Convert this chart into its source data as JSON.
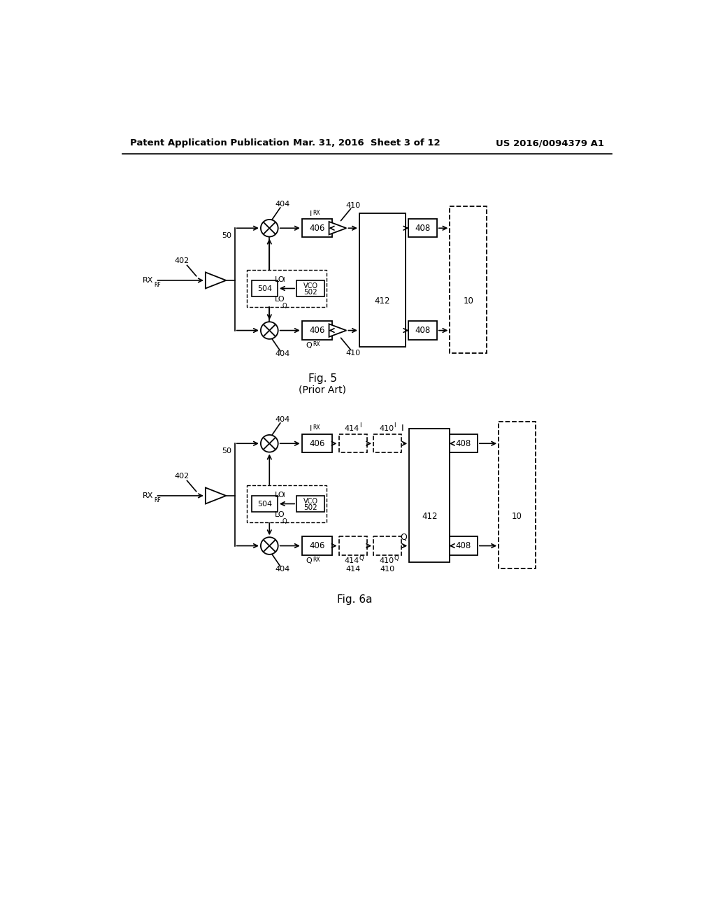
{
  "header_left": "Patent Application Publication",
  "header_mid": "Mar. 31, 2016  Sheet 3 of 12",
  "header_right": "US 2016/0094379 A1",
  "fig5_title": "Fig. 5",
  "fig5_subtitle": "(Prior Art)",
  "fig6_title": "Fig. 6a",
  "bg_color": "#ffffff"
}
